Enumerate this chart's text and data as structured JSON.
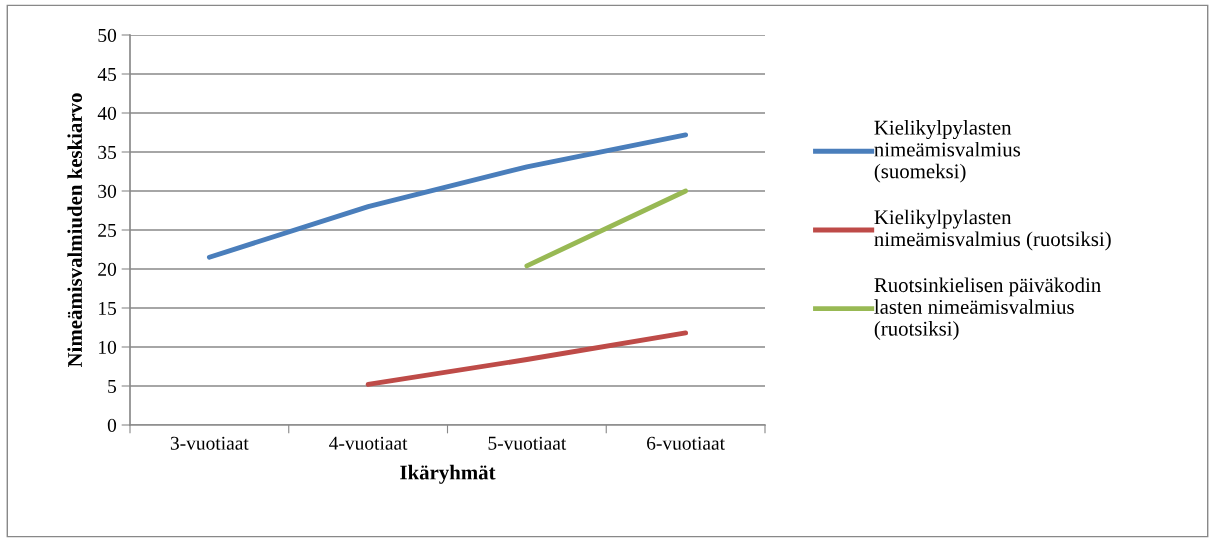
{
  "chart_data": {
    "type": "line",
    "xlabel": "Ikäryhmät",
    "ylabel": "Nimeämisvalmiuden keskiarvo",
    "categories": [
      "3-vuotiaat",
      "4-vuotiaat",
      "5-vuotiaat",
      "6-vuotiaat"
    ],
    "series": [
      {
        "name": "Kielikylpylasten\nnimeämisvalmius\n(suomeksi)",
        "color": "#4a7ebb",
        "values": [
          21.5,
          28.0,
          33.1,
          37.2
        ]
      },
      {
        "name": "Kielikylpylasten\nnimeämisvalmius (ruotsiksi)",
        "color": "#be4b48",
        "values": [
          null,
          5.2,
          8.4,
          11.8
        ]
      },
      {
        "name": "Ruotsinkielisen päiväkodin\nlasten nimeämisvalmius\n(ruotsiksi)",
        "color": "#98b954",
        "values": [
          null,
          null,
          20.4,
          30.0
        ]
      }
    ],
    "ylim": [
      0,
      50
    ],
    "yticks": [
      0,
      5,
      10,
      15,
      20,
      25,
      30,
      35,
      40,
      45,
      50
    ],
    "grid": "y",
    "legend": "right",
    "marker": "none",
    "line_style": "solid"
  }
}
